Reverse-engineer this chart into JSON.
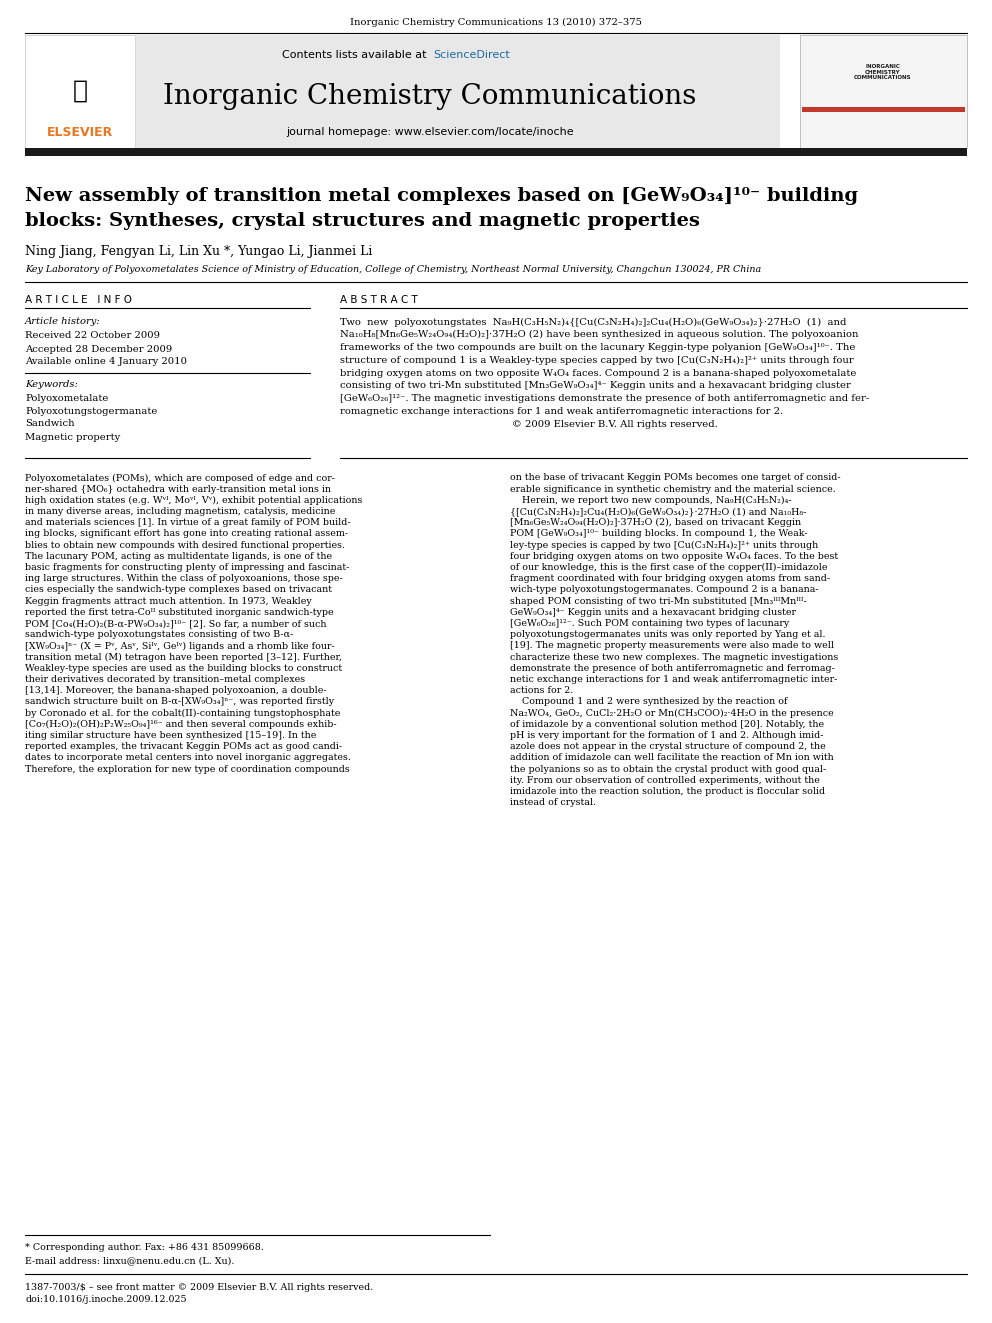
{
  "page_width": 9.92,
  "page_height": 13.23,
  "bg_color": "#ffffff",
  "journal_line": "Inorganic Chemistry Communications 13 (2010) 372–375",
  "header_bg": "#e8e8e8",
  "sciencedirect_color": "#1a6aa0",
  "journal_title": "Inorganic Chemistry Communications",
  "homepage_line": "journal homepage: www.elsevier.com/locate/inoche",
  "elsevier_color": "#e87722",
  "article_title_line1": "New assembly of transition metal complexes based on [GeW₉O₃₄]¹⁰⁻ building",
  "article_title_line2": "blocks: Syntheses, crystal structures and magnetic properties",
  "authors": "Ning Jiang, Fengyan Li, Lin Xu *, Yungao Li, Jianmei Li",
  "affiliation": "Key Laboratory of Polyoxometalates Science of Ministry of Education, College of Chemistry, Northeast Normal University, Changchun 130024, PR China",
  "article_info_header": "A R T I C L E   I N F O",
  "abstract_header": "A B S T R A C T",
  "article_history_label": "Article history:",
  "received": "Received 22 October 2009",
  "accepted": "Accepted 28 December 2009",
  "available": "Available online 4 January 2010",
  "keywords_label": "Keywords:",
  "keywords": [
    "Polyoxometalate",
    "Polyoxotungstogermanate",
    "Sandwich",
    "Magnetic property"
  ],
  "abstract_lines": [
    "Two  new  polyoxotungstates  Na₉H(C₃H₅N₂)₄{[Cu(C₃N₂H₄)₂]₂Cu₄(H₂O)₆(GeW₉O₃₄)₂}·27H₂O  (1)  and",
    "Na₁₀H₈[Mn₆Ge₅W₂₄O₉₄(H₂O)₂]·37H₂O (2) have been synthesized in aqueous solution. The polyoxoanion",
    "frameworks of the two compounds are built on the lacunary Keggin-type polyanion [GeW₉O₃₄]¹⁰⁻. The",
    "structure of compound 1 is a Weakley-type species capped by two [Cu(C₃N₂H₄)₂]²⁺ units through four",
    "bridging oxygen atoms on two opposite W₄O₄ faces. Compound 2 is a banana-shaped polyoxometalate",
    "consisting of two tri-Mn substituted [Mn₃GeW₉O₃₄]⁴⁻ Keggin units and a hexavacant bridging cluster",
    "[GeW₆O₂₆]¹²⁻. The magnetic investigations demonstrate the presence of both antiferromagnetic and fer-",
    "romagnetic exchange interactions for 1 and weak antiferromagnetic interactions for 2.",
    "                                                       © 2009 Elsevier B.V. All rights reserved."
  ],
  "body_left": [
    "Polyoxometalates (POMs), which are composed of edge and cor-",
    "ner-shared {MO₆} octahedra with early-transition metal ions in",
    "high oxidation states (e.g. Wᵛᴵ, Moᵛᴵ, Vᵛ), exhibit potential applications",
    "in many diverse areas, including magnetism, catalysis, medicine",
    "and materials sciences [1]. In virtue of a great family of POM build-",
    "ing blocks, significant effort has gone into creating rational assem-",
    "blies to obtain new compounds with desired functional properties.",
    "The lacunary POM, acting as multidentate ligands, is one of the",
    "basic fragments for constructing plenty of impressing and fascinat-",
    "ing large structures. Within the class of polyoxoanions, those spe-",
    "cies especially the sandwich-type complexes based on trivacant",
    "Keggin fragments attract much attention. In 1973, Weakley",
    "reported the first tetra-Coᴵᴵ substituted inorganic sandwich-type",
    "POM [Co₄(H₂O)₂(B-α-PW₉O₃₄)₂]¹⁰⁻ [2]. So far, a number of such",
    "sandwich-type polyoxotungstates consisting of two B-α-",
    "[XW₉O₃₄]ⁿ⁻ (X = Pᵛ, Asᵛ, Siᴵᵛ, Geᴵᵛ) ligands and a rhomb like four-",
    "transition metal (M) tetragon have been reported [3–12]. Further,",
    "Weakley-type species are used as the building blocks to construct",
    "their derivatives decorated by transition–metal complexes",
    "[13,14]. Moreover, the banana-shaped polyoxoanion, a double-",
    "sandwich structure built on B-α-[XW₉O₃₄]ⁿ⁻, was reported firstly",
    "by Coronado et al. for the cobalt(II)-containing tungstophosphate",
    "[Co₇(H₂O)₂(OH)₂P₂W₂₅O₉₄]¹⁶⁻ and then several compounds exhib-",
    "iting similar structure have been synthesized [15–19]. In the",
    "reported examples, the trivacant Keggin POMs act as good candi-",
    "dates to incorporate metal centers into novel inorganic aggregates.",
    "Therefore, the exploration for new type of coordination compounds"
  ],
  "body_right": [
    "on the base of trivacant Keggin POMs becomes one target of consid-",
    "erable significance in synthetic chemistry and the material science.",
    "    Herein, we report two new compounds, Na₉H(C₃H₅N₂)₄-",
    "{[Cu(C₃N₂H₄)₂]₂Cu₄(H₂O)₆(GeW₉O₃₄)₂}·27H₂O (1) and Na₁₀H₈-",
    "[Mn₆Ge₅W₂₄O₉₄(H₂O)₂]·37H₂O (2), based on trivacant Keggin",
    "POM [GeW₉O₃₄]¹⁰⁻ building blocks. In compound 1, the Weak-",
    "ley-type species is capped by two [Cu(C₃N₂H₄)₂]²⁺ units through",
    "four bridging oxygen atoms on two opposite W₄O₄ faces. To the best",
    "of our knowledge, this is the first case of the copper(II)–imidazole",
    "fragment coordinated with four bridging oxygen atoms from sand-",
    "wich-type polyoxotungstogermanates. Compound 2 is a banana-",
    "shaped POM consisting of two tri-Mn substituted [Mn₃ᴵᴵᴵMnᴵᴵᴵ-",
    "GeW₉O₃₄]⁴⁻ Keggin units and a hexavacant bridging cluster",
    "[GeW₆O₂₆]¹²⁻. Such POM containing two types of lacunary",
    "polyoxotungstogermanates units was only reported by Yang et al.",
    "[19]. The magnetic property measurements were also made to well",
    "characterize these two new complexes. The magnetic investigations",
    "demonstrate the presence of both antiferromagnetic and ferromag-",
    "netic exchange interactions for 1 and weak antiferromagnetic inter-",
    "actions for 2.",
    "    Compound 1 and 2 were synthesized by the reaction of",
    "Na₂WO₄, GeO₂, CuCl₂·2H₂O or Mn(CH₃COO)₂·4H₂O in the presence",
    "of imidazole by a conventional solution method [20]. Notably, the",
    "pH is very important for the formation of 1 and 2. Although imid-",
    "azole does not appear in the crystal structure of compound 2, the",
    "addition of imidazole can well facilitate the reaction of Mn ion with",
    "the polyanions so as to obtain the crystal product with good qual-",
    "ity. From our observation of controlled experiments, without the",
    "imidazole into the reaction solution, the product is floccular solid",
    "instead of crystal."
  ],
  "footnote_star": "* Corresponding author. Fax: +86 431 85099668.",
  "footnote_email": "E-mail address: linxu@nenu.edu.cn (L. Xu).",
  "footnote_issn": "1387-7003/$ – see front matter © 2009 Elsevier B.V. All rights reserved.",
  "footnote_doi": "doi:10.1016/j.inoche.2009.12.025"
}
